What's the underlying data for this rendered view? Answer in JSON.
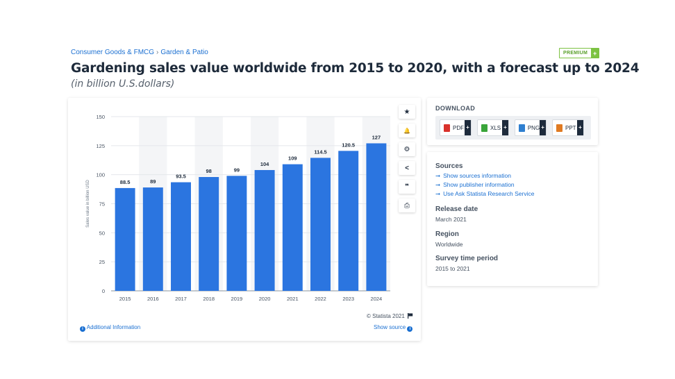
{
  "breadcrumb": {
    "item1": "Consumer Goods & FMCG",
    "separator": "›",
    "item2": "Garden & Patio"
  },
  "premium": {
    "label": "PREMIUM",
    "plus": "+"
  },
  "title": "Gardening sales value worldwide from 2015 to 2020, with a forecast up to 2024",
  "subtitle": "(in billion U.S.dollars)",
  "toolbar": {
    "star_icon": "★",
    "bell_icon": "🔔",
    "gear_icon": "⚙",
    "share_icon": "<",
    "quote_icon": "❞",
    "print_icon": "⎙"
  },
  "chart_data": {
    "type": "bar",
    "categories": [
      "2015",
      "2016",
      "2017",
      "2018",
      "2019",
      "2020",
      "2021",
      "2022",
      "2023",
      "2024"
    ],
    "values": [
      88.5,
      89,
      93.5,
      98,
      99,
      104,
      109,
      114.5,
      120.5,
      127
    ],
    "value_labels": [
      "88.5",
      "89",
      "93.5",
      "98",
      "99",
      "104",
      "109",
      "114.5",
      "120.5",
      "127"
    ],
    "ylabel": "Sales value in billion USD",
    "ylim": [
      0,
      150
    ],
    "yticks": [
      "0",
      "25",
      "50",
      "75",
      "100",
      "125",
      "150"
    ],
    "bar_color": "#2b75e0",
    "band_color": "#f4f5f7",
    "grid": true
  },
  "chart_footer": {
    "copyright": "© Statista 2021",
    "additional_info": "Additional Information",
    "show_source": "Show source",
    "info_glyph": "i"
  },
  "download": {
    "title": "DOWNLOAD",
    "buttons": [
      {
        "label": "PDF",
        "color": "#d9312b"
      },
      {
        "label": "XLS",
        "color": "#3aa53a"
      },
      {
        "label": "PNG",
        "color": "#2f7fd0"
      },
      {
        "label": "PPT",
        "color": "#e07a22"
      }
    ],
    "plus": "+"
  },
  "info": {
    "sources_heading": "Sources",
    "links": [
      "Show sources information",
      "Show publisher information",
      "Use Ask Statista Research Service"
    ],
    "arrow": "➞",
    "release_heading": "Release date",
    "release_value": "March 2021",
    "region_heading": "Region",
    "region_value": "Worldwide",
    "survey_heading": "Survey time period",
    "survey_value": "2015 to 2021"
  }
}
